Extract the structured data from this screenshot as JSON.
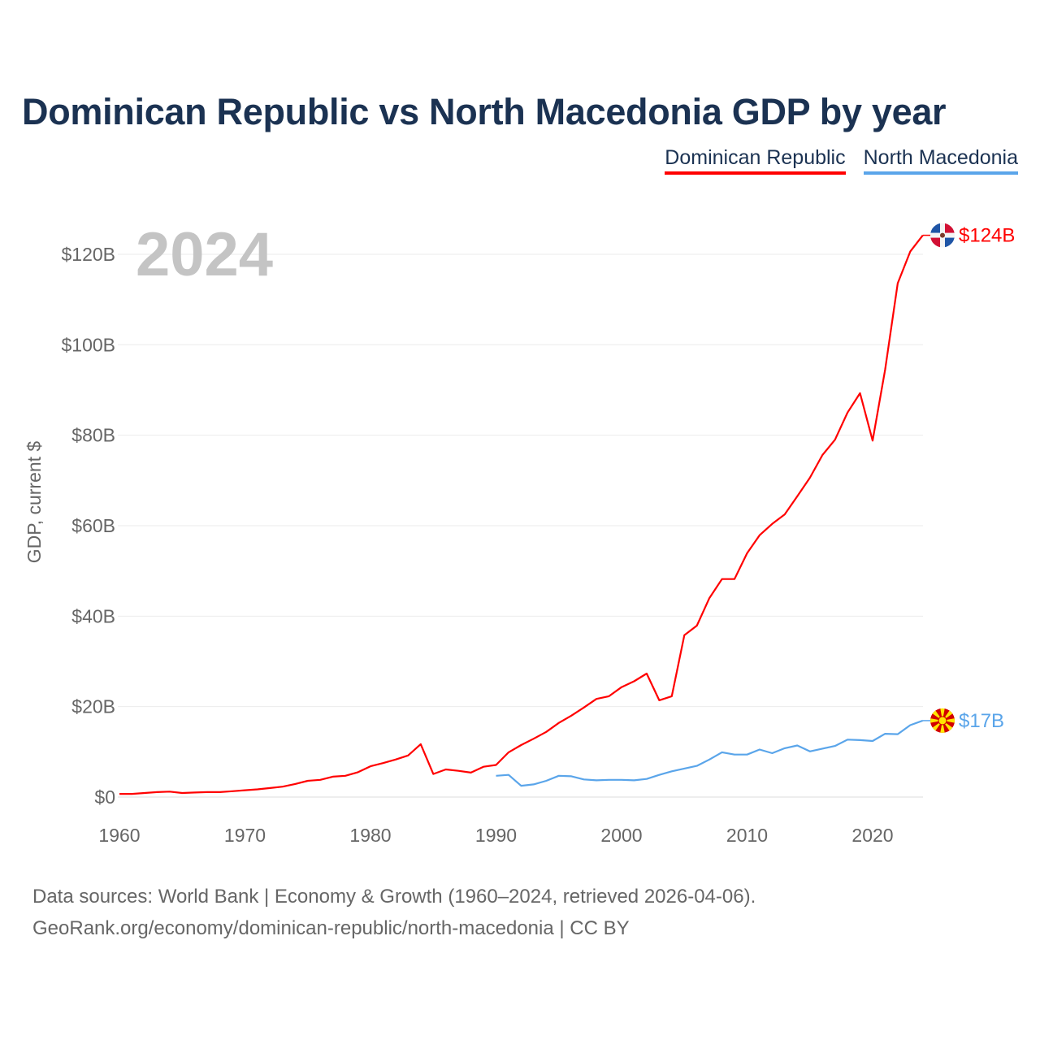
{
  "header": {
    "title": "Dominican Republic vs North Macedonia GDP by year"
  },
  "legend": [
    {
      "label": "Dominican Republic",
      "color": "#ff0000"
    },
    {
      "label": "North Macedonia",
      "color": "#5aa5ea"
    }
  ],
  "footer": {
    "line1": "Data sources: World Bank | Economy & Growth (1960–2024, retrieved 2026-04-06).",
    "line2": "GeoRank.org/economy/dominican-republic/north-macedonia | CC BY"
  },
  "chart_data": {
    "type": "line",
    "title": "Dominican Republic vs North Macedonia GDP by year",
    "ylabel": "GDP, current $",
    "xlabel": "",
    "year_watermark": "2024",
    "xlim": [
      1960,
      2024
    ],
    "ylim": [
      0,
      125
    ],
    "x_ticks": [
      1960,
      1970,
      1980,
      1990,
      2000,
      2010,
      2020
    ],
    "y_ticks": [
      0,
      20,
      40,
      60,
      80,
      100,
      120
    ],
    "y_tick_labels": [
      "$0",
      "$20B",
      "$40B",
      "$60B",
      "$80B",
      "$100B",
      "$120B"
    ],
    "grid": "horizontal",
    "legend_position": "top-right",
    "units": "billions USD",
    "series": [
      {
        "name": "Dominican Republic",
        "color": "#ff0000",
        "end_label": "$124B",
        "flag_icon": "dominican-republic-flag-icon",
        "start_year": 1960,
        "values": [
          0.7,
          0.7,
          0.9,
          1.1,
          1.2,
          0.9,
          1.0,
          1.1,
          1.1,
          1.3,
          1.5,
          1.7,
          2.0,
          2.3,
          2.9,
          3.6,
          3.8,
          4.5,
          4.7,
          5.5,
          6.8,
          7.5,
          8.3,
          9.2,
          11.7,
          5.1,
          6.1,
          5.8,
          5.4,
          6.7,
          7.1,
          9.9,
          11.5,
          12.9,
          14.4,
          16.4,
          18.0,
          19.8,
          21.7,
          22.3,
          24.3,
          25.6,
          27.3,
          21.4,
          22.3,
          35.8,
          37.9,
          44.0,
          48.2,
          48.2,
          53.9,
          57.9,
          60.4,
          62.5,
          66.5,
          70.6,
          75.6,
          79.0,
          85.0,
          89.3,
          78.8,
          94.5,
          113.6,
          120.6,
          124.2
        ]
      },
      {
        "name": "North Macedonia",
        "color": "#5aa5ea",
        "end_label": "$17B",
        "flag_icon": "north-macedonia-flag-icon",
        "start_year": 1990,
        "values": [
          4.7,
          4.9,
          2.5,
          2.8,
          3.6,
          4.7,
          4.6,
          3.9,
          3.7,
          3.8,
          3.8,
          3.7,
          4.0,
          4.9,
          5.7,
          6.3,
          6.9,
          8.3,
          9.9,
          9.4,
          9.4,
          10.5,
          9.7,
          10.8,
          11.4,
          10.1,
          10.7,
          11.3,
          12.7,
          12.6,
          12.4,
          14.0,
          13.9,
          15.9,
          16.9
        ]
      }
    ]
  }
}
